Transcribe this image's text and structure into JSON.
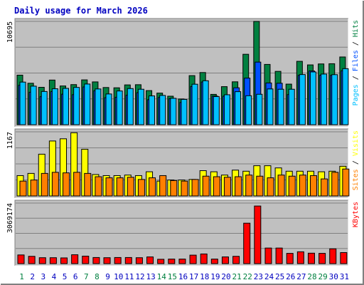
{
  "chart_data": {
    "type": "bar",
    "title": "Daily usage for March 2026",
    "days": [
      "1",
      "2",
      "3",
      "4",
      "5",
      "6",
      "7",
      "8",
      "9",
      "10",
      "11",
      "12",
      "13",
      "14",
      "15",
      "16",
      "17",
      "18",
      "19",
      "20",
      "21",
      "22",
      "23",
      "24",
      "25",
      "26",
      "27",
      "28",
      "29",
      "30",
      "31"
    ],
    "weekend_days": [
      "1",
      "7",
      "8",
      "14",
      "15",
      "21",
      "22",
      "28",
      "29"
    ],
    "panels": [
      {
        "id": "hits",
        "ymax_label": "10695",
        "ymax": 10695,
        "legend": [
          {
            "label": "Pages",
            "color": "#00c0ff"
          },
          {
            "label": "Files",
            "color": "#0050ff"
          },
          {
            "label": "Hits",
            "color": "#008040"
          }
        ],
        "series": [
          {
            "name": "Hits",
            "values": [
              5130,
              4290,
              3870,
              4620,
              4010,
              4150,
              4640,
              4430,
              3850,
              3820,
              4120,
              4140,
              3530,
              3270,
              2950,
              2660,
              5080,
              5400,
              3140,
              3940,
              4440,
              7290,
              10690,
              6240,
              5520,
              4200,
              6560,
              6190,
              6290,
              6310,
              7010
            ]
          },
          {
            "name": "Files",
            "values": [
              4080,
              3360,
              2900,
              3430,
              3160,
              3110,
              3910,
              3510,
              2790,
              2840,
              3050,
              3320,
              2590,
              2820,
              2690,
              2300,
              3950,
              4420,
              2960,
              2950,
              3820,
              4820,
              6480,
              4320,
              4290,
              3120,
              5110,
              5560,
              5120,
              5110,
              5580
            ]
          },
          {
            "name": "Pages",
            "values": [
              4410,
              3990,
              3440,
              3720,
              3760,
              3860,
              4210,
              3700,
              3180,
              3490,
              3740,
              3670,
              2980,
              3030,
              2730,
              2620,
              4190,
              4550,
              2910,
              3100,
              3420,
              3000,
              3150,
              3700,
              3670,
              3670,
              5190,
              5460,
              5240,
              5180,
              5800
            ]
          }
        ]
      },
      {
        "id": "visits",
        "ymax_label": "1167",
        "ymax": 1167,
        "legend": [
          {
            "label": "Sites",
            "color": "#ff8000"
          },
          {
            "label": "Visits",
            "color": "#ffff00"
          }
        ],
        "series": [
          {
            "name": "Visits",
            "values": [
              370,
              410,
              760,
              1000,
              1040,
              1150,
              850,
              390,
              370,
              370,
              380,
              370,
              440,
              270,
              290,
              290,
              300,
              460,
              440,
              380,
              470,
              450,
              550,
              550,
              510,
              450,
              450,
              450,
              440,
              450,
              540
            ]
          },
          {
            "name": "Sites",
            "values": [
              270,
              290,
              410,
              430,
              420,
              430,
              410,
              350,
              330,
              330,
              340,
              300,
              330,
              370,
              280,
              270,
              300,
              360,
              350,
              340,
              350,
              380,
              360,
              330,
              380,
              360,
              380,
              370,
              310,
              430,
              490
            ]
          }
        ]
      },
      {
        "id": "kbytes",
        "ymax_label": "3069174",
        "ymax": 3069174,
        "legend": [
          {
            "label": "KBytes",
            "color": "#ff0000"
          }
        ],
        "series": [
          {
            "name": "KBytes",
            "values": [
              440000,
              370000,
              300000,
              300000,
              290000,
              450000,
              380000,
              310000,
              300000,
              310000,
              310000,
              300000,
              340000,
              220000,
              230000,
              230000,
              430000,
              490000,
              230000,
              340000,
              370000,
              2050000,
              2920000,
              790000,
              790000,
              520000,
              600000,
              530000,
              520000,
              750000,
              560000
            ]
          }
        ]
      }
    ]
  },
  "colors": {
    "background": "#ffffff",
    "plot_bg": "#c0c0c0",
    "bevel_light": "#ffffff",
    "bevel_dark": "#808080",
    "grid": "#808080",
    "title_text": "#0000c0",
    "weekday_text": "#0000c0",
    "weekend_text": "#008040",
    "bar_outline": "#000000"
  }
}
